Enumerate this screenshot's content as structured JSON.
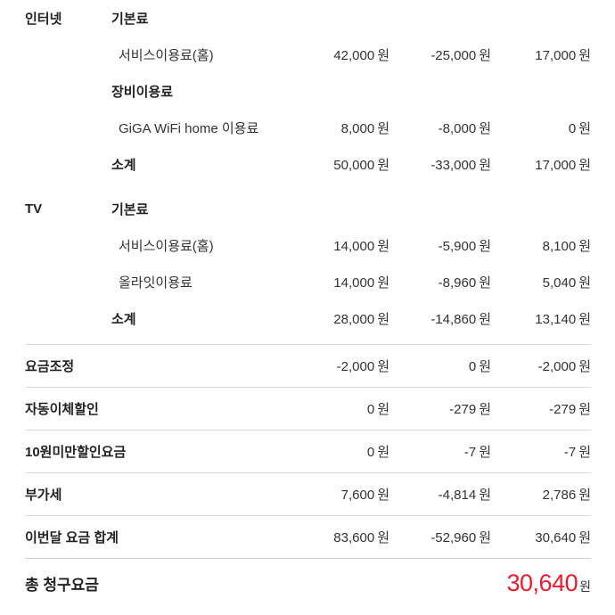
{
  "currency_suffix": "원",
  "colors": {
    "accent_red": "#ed1c2b",
    "text": "#333333",
    "divider": "#dcdcdc"
  },
  "rows": [
    {
      "category": "인터넷",
      "label": "기본료"
    },
    {
      "label": "서비스이용료(홈)",
      "charge": "42,000",
      "discount": "-25,000",
      "total": "17,000"
    },
    {
      "label": "장비이용료"
    },
    {
      "label": "GiGA WiFi home 이용료",
      "charge": "8,000",
      "discount": "-8,000",
      "total": "0"
    },
    {
      "label": "소계",
      "charge": "50,000",
      "discount": "-33,000",
      "total": "17,000"
    },
    {
      "category": "TV",
      "label": "기본료"
    },
    {
      "label": "서비스이용료(홈)",
      "charge": "14,000",
      "discount": "-5,900",
      "total": "8,100"
    },
    {
      "label": "올라잇이용료",
      "charge": "14,000",
      "discount": "-8,960",
      "total": "5,040"
    },
    {
      "label": "소계",
      "charge": "28,000",
      "discount": "-14,860",
      "total": "13,140"
    }
  ],
  "summary_rows": [
    {
      "label": "요금조정",
      "charge": "-2,000",
      "discount": "0",
      "total": "-2,000"
    },
    {
      "label": "자동이체할인",
      "charge": "0",
      "discount": "-279",
      "total": "-279"
    },
    {
      "label": "10원미만할인요금",
      "charge": "0",
      "discount": "-7",
      "total": "-7"
    },
    {
      "label": "부가세",
      "charge": "7,600",
      "discount": "-4,814",
      "total": "2,786"
    },
    {
      "label": "이번달 요금 합계",
      "charge": "83,600",
      "discount": "-52,960",
      "total": "30,640"
    }
  ],
  "grand_total": {
    "label": "총 청구요금",
    "amount": "30,640"
  }
}
